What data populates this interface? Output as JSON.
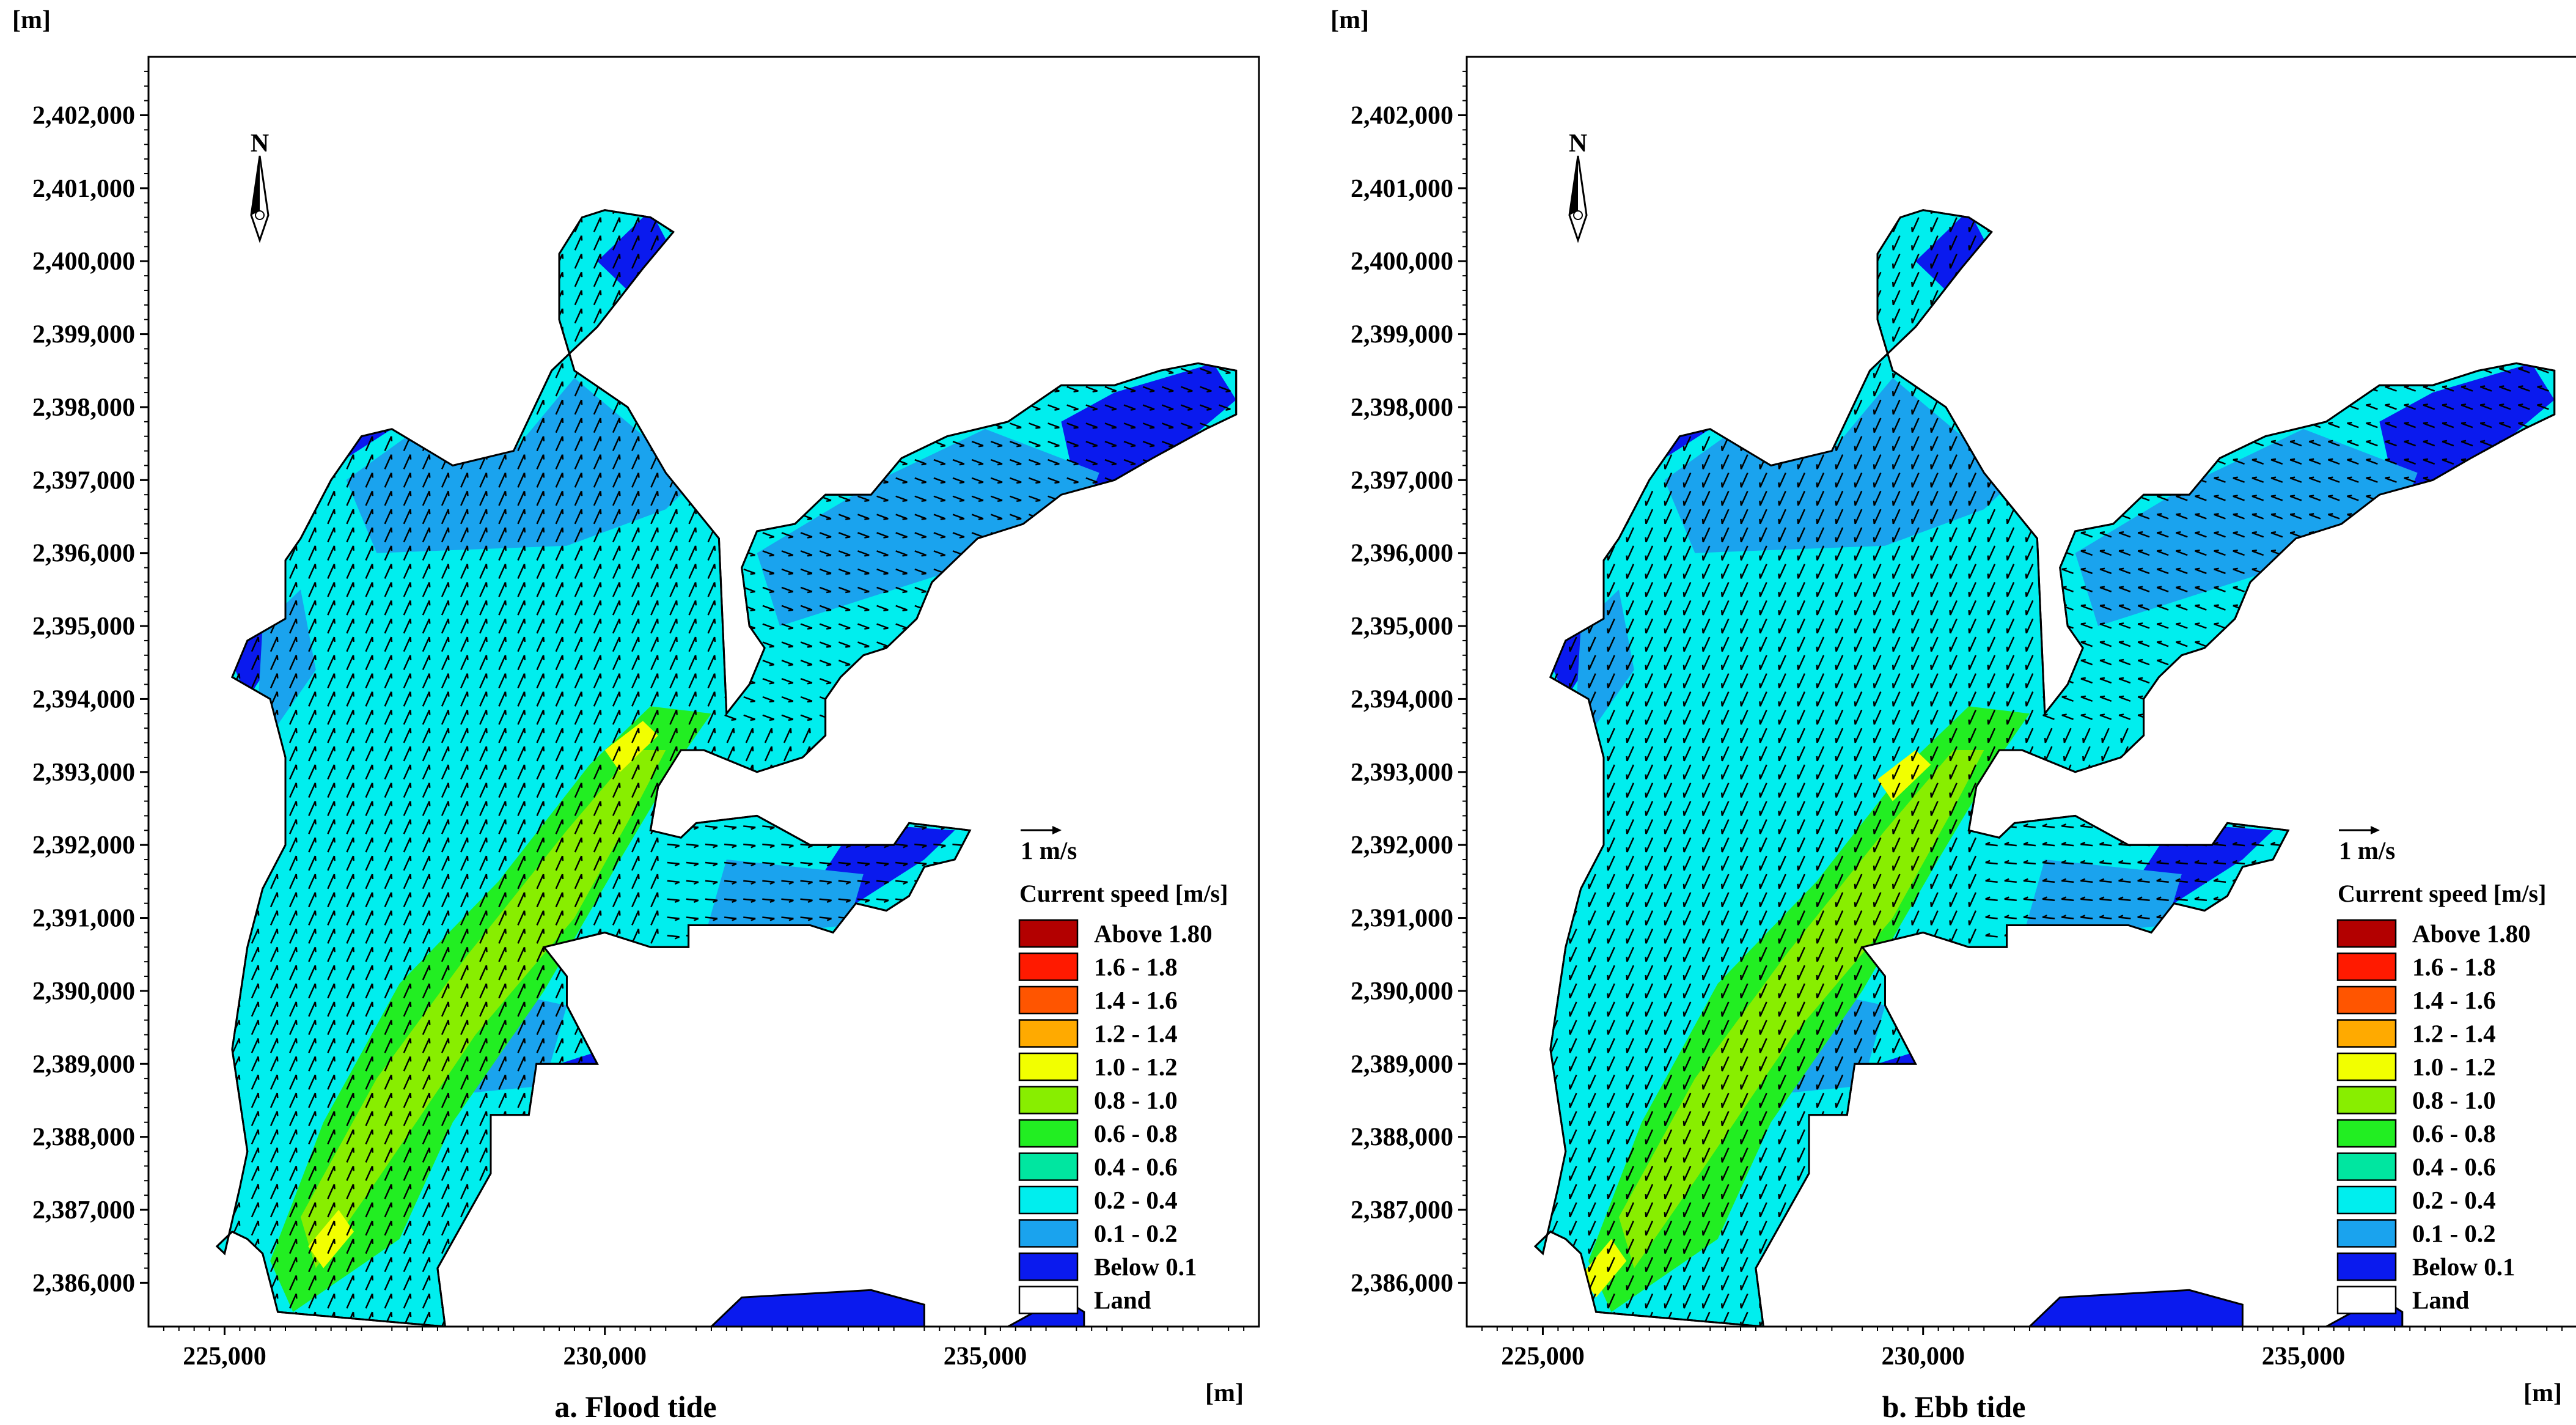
{
  "chart_data": [
    {
      "type": "heatmap",
      "title": "a. Flood tide",
      "x_unit_label": "[m]",
      "y_unit_label": "[m]",
      "x_ticks": [
        "225,000",
        "230,000",
        "235,000"
      ],
      "y_ticks": [
        "2,386,000",
        "2,387,000",
        "2,388,000",
        "2,389,000",
        "2,390,000",
        "2,391,000",
        "2,392,000",
        "2,393,000",
        "2,394,000",
        "2,395,000",
        "2,396,000",
        "2,397,000",
        "2,398,000",
        "2,399,000",
        "2,400,000",
        "2,401,000",
        "2,402,000"
      ],
      "xlim": [
        224000,
        238600
      ],
      "ylim": [
        2385400,
        2402800
      ],
      "north_arrow": "N",
      "vector_scale_label": "1 m/s",
      "legend_title": "Current speed [m/s]",
      "legend_position": "bottom-right",
      "legend": [
        {
          "label": "Above 1.80",
          "color": "#b30000"
        },
        {
          "label": "1.6 - 1.8",
          "color": "#ff1a00"
        },
        {
          "label": "1.4 - 1.6",
          "color": "#ff5500"
        },
        {
          "label": "1.2 - 1.4",
          "color": "#ffaa00"
        },
        {
          "label": "1.0 - 1.2",
          "color": "#f2ff00"
        },
        {
          "label": "0.8 - 1.0",
          "color": "#88ee00"
        },
        {
          "label": "0.6 - 0.8",
          "color": "#22ee22"
        },
        {
          "label": "0.4 - 0.6",
          "color": "#00e6a0"
        },
        {
          "label": "0.2 - 0.4",
          "color": "#00eeee"
        },
        {
          "label": "0.1 - 0.2",
          "color": "#1aa3ee"
        },
        {
          "label": "Below 0.1",
          "color": "#0a1aee"
        },
        {
          "label": "Land",
          "color": "#ffffff"
        }
      ]
    },
    {
      "type": "heatmap",
      "title": "b. Ebb tide",
      "x_unit_label": "[m]",
      "y_unit_label": "[m]",
      "x_ticks": [
        "225,000",
        "230,000",
        "235,000"
      ],
      "y_ticks": [
        "2,386,000",
        "2,387,000",
        "2,388,000",
        "2,389,000",
        "2,390,000",
        "2,391,000",
        "2,392,000",
        "2,393,000",
        "2,394,000",
        "2,395,000",
        "2,396,000",
        "2,397,000",
        "2,398,000",
        "2,399,000",
        "2,400,000",
        "2,401,000",
        "2,402,000"
      ],
      "xlim": [
        224000,
        238600
      ],
      "ylim": [
        2385400,
        2402800
      ],
      "north_arrow": "N",
      "vector_scale_label": "1 m/s",
      "legend_title": "Current speed [m/s]",
      "legend_position": "bottom-right",
      "legend": [
        {
          "label": "Above 1.80",
          "color": "#b30000"
        },
        {
          "label": "1.6 - 1.8",
          "color": "#ff1a00"
        },
        {
          "label": "1.4 - 1.6",
          "color": "#ff5500"
        },
        {
          "label": "1.2 - 1.4",
          "color": "#ffaa00"
        },
        {
          "label": "1.0 - 1.2",
          "color": "#f2ff00"
        },
        {
          "label": "0.8 - 1.0",
          "color": "#88ee00"
        },
        {
          "label": "0.6 - 0.8",
          "color": "#22ee22"
        },
        {
          "label": "0.4 - 0.6",
          "color": "#00e6a0"
        },
        {
          "label": "0.2 - 0.4",
          "color": "#00eeee"
        },
        {
          "label": "0.1 - 0.2",
          "color": "#1aa3ee"
        },
        {
          "label": "Below 0.1",
          "color": "#0a1aee"
        },
        {
          "label": "Land",
          "color": "#ffffff"
        }
      ]
    }
  ]
}
